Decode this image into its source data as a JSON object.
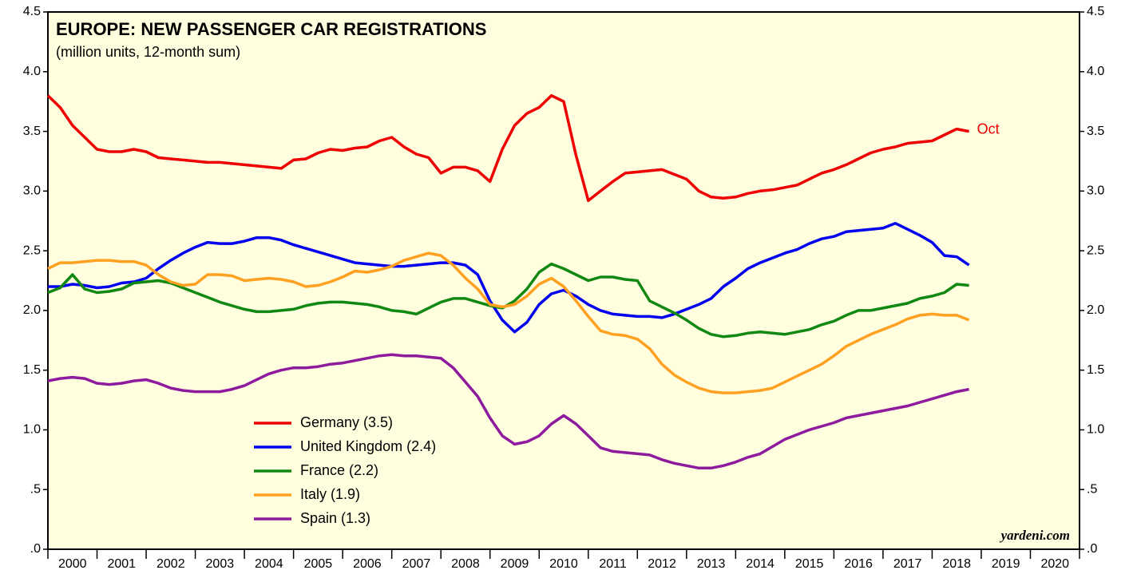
{
  "chart_data": {
    "type": "line",
    "title": "EUROPE: NEW PASSENGER CAR REGISTRATIONS",
    "subtitle": "(million units, 12-month sum)",
    "annotation": "Oct",
    "source": "yardeni.com",
    "grid": false,
    "legend": "lower-left",
    "xlim": [
      2000,
      2021
    ],
    "xticks": [
      2000,
      2001,
      2002,
      2003,
      2004,
      2005,
      2006,
      2007,
      2008,
      2009,
      2010,
      2011,
      2012,
      2013,
      2014,
      2015,
      2016,
      2017,
      2018,
      2019,
      2020
    ],
    "ylim": [
      0,
      4.5
    ],
    "yticks": [
      {
        "value": 0,
        "label": ".0"
      },
      {
        "value": 0.5,
        "label": ".5"
      },
      {
        "value": 1,
        "label": "1.0"
      },
      1.5,
      {
        "value": 2,
        "label": "2.0"
      },
      2.5,
      {
        "value": 3,
        "label": "3.0"
      },
      3.5,
      {
        "value": 4,
        "label": "4.0"
      },
      4.5
    ],
    "x": [
      2000,
      2000.25,
      2000.5,
      2000.75,
      2001,
      2001.25,
      2001.5,
      2001.75,
      2002,
      2002.25,
      2002.5,
      2002.75,
      2003,
      2003.25,
      2003.5,
      2003.75,
      2004,
      2004.25,
      2004.5,
      2004.75,
      2005,
      2005.25,
      2005.5,
      2005.75,
      2006,
      2006.25,
      2006.5,
      2006.75,
      2007,
      2007.25,
      2007.5,
      2007.75,
      2008,
      2008.25,
      2008.5,
      2008.75,
      2009,
      2009.25,
      2009.5,
      2009.75,
      2010,
      2010.25,
      2010.5,
      2010.75,
      2011,
      2011.25,
      2011.5,
      2011.75,
      2012,
      2012.25,
      2012.5,
      2012.75,
      2013,
      2013.25,
      2013.5,
      2013.75,
      2014,
      2014.25,
      2014.5,
      2014.75,
      2015,
      2015.25,
      2015.5,
      2015.75,
      2016,
      2016.25,
      2016.5,
      2016.75,
      2017,
      2017.25,
      2017.5,
      2017.75,
      2018,
      2018.25,
      2018.5,
      2018.75
    ],
    "series": [
      {
        "name": "Germany (3.5)",
        "color": "#ee0000",
        "values": [
          3.8,
          3.7,
          3.55,
          3.45,
          3.35,
          3.33,
          3.33,
          3.35,
          3.33,
          3.28,
          3.27,
          3.26,
          3.25,
          3.24,
          3.24,
          3.23,
          3.22,
          3.21,
          3.2,
          3.19,
          3.26,
          3.27,
          3.32,
          3.35,
          3.34,
          3.36,
          3.37,
          3.42,
          3.45,
          3.37,
          3.31,
          3.28,
          3.15,
          3.2,
          3.2,
          3.17,
          3.08,
          3.35,
          3.55,
          3.65,
          3.7,
          3.8,
          3.75,
          3.3,
          2.92,
          3.0,
          3.08,
          3.15,
          3.16,
          3.17,
          3.18,
          3.14,
          3.1,
          3.0,
          2.95,
          2.94,
          2.95,
          2.98,
          3.0,
          3.01,
          3.03,
          3.05,
          3.1,
          3.15,
          3.18,
          3.22,
          3.27,
          3.32,
          3.35,
          3.37,
          3.4,
          3.41,
          3.42,
          3.47,
          3.52,
          3.5
        ]
      },
      {
        "name": "United Kingdom (2.4)",
        "color": "#0000ee",
        "values": [
          2.2,
          2.2,
          2.22,
          2.21,
          2.19,
          2.2,
          2.23,
          2.24,
          2.27,
          2.35,
          2.42,
          2.48,
          2.53,
          2.57,
          2.56,
          2.56,
          2.58,
          2.61,
          2.61,
          2.59,
          2.55,
          2.52,
          2.49,
          2.46,
          2.43,
          2.4,
          2.39,
          2.38,
          2.37,
          2.37,
          2.38,
          2.39,
          2.4,
          2.4,
          2.38,
          2.3,
          2.08,
          1.92,
          1.82,
          1.9,
          2.05,
          2.14,
          2.17,
          2.12,
          2.05,
          2.0,
          1.97,
          1.96,
          1.95,
          1.95,
          1.94,
          1.97,
          2.01,
          2.05,
          2.1,
          2.2,
          2.27,
          2.35,
          2.4,
          2.44,
          2.48,
          2.51,
          2.56,
          2.6,
          2.62,
          2.66,
          2.67,
          2.68,
          2.69,
          2.73,
          2.68,
          2.63,
          2.57,
          2.46,
          2.45,
          2.38
        ]
      },
      {
        "name": "France (2.2)",
        "color": "#118811",
        "values": [
          2.15,
          2.19,
          2.3,
          2.18,
          2.15,
          2.16,
          2.18,
          2.23,
          2.24,
          2.25,
          2.23,
          2.19,
          2.15,
          2.11,
          2.07,
          2.04,
          2.01,
          1.99,
          1.99,
          2.0,
          2.01,
          2.04,
          2.06,
          2.07,
          2.07,
          2.06,
          2.05,
          2.03,
          2.0,
          1.99,
          1.97,
          2.02,
          2.07,
          2.1,
          2.1,
          2.07,
          2.04,
          2.02,
          2.08,
          2.18,
          2.32,
          2.39,
          2.35,
          2.3,
          2.25,
          2.28,
          2.28,
          2.26,
          2.25,
          2.08,
          2.03,
          1.98,
          1.92,
          1.85,
          1.8,
          1.78,
          1.79,
          1.81,
          1.82,
          1.81,
          1.8,
          1.82,
          1.84,
          1.88,
          1.91,
          1.96,
          2.0,
          2.0,
          2.02,
          2.04,
          2.06,
          2.1,
          2.12,
          2.15,
          2.22,
          2.21
        ]
      },
      {
        "name": "Italy (1.9)",
        "color": "#ffa020",
        "values": [
          2.35,
          2.4,
          2.4,
          2.41,
          2.42,
          2.42,
          2.41,
          2.41,
          2.38,
          2.3,
          2.24,
          2.21,
          2.22,
          2.3,
          2.3,
          2.29,
          2.25,
          2.26,
          2.27,
          2.26,
          2.24,
          2.2,
          2.21,
          2.24,
          2.28,
          2.33,
          2.32,
          2.34,
          2.37,
          2.42,
          2.45,
          2.48,
          2.46,
          2.38,
          2.27,
          2.18,
          2.05,
          2.03,
          2.05,
          2.12,
          2.22,
          2.27,
          2.2,
          2.08,
          1.95,
          1.83,
          1.8,
          1.79,
          1.76,
          1.68,
          1.55,
          1.46,
          1.4,
          1.35,
          1.32,
          1.31,
          1.31,
          1.32,
          1.33,
          1.35,
          1.4,
          1.45,
          1.5,
          1.55,
          1.62,
          1.7,
          1.75,
          1.8,
          1.84,
          1.88,
          1.93,
          1.96,
          1.97,
          1.96,
          1.96,
          1.92
        ]
      },
      {
        "name": "Spain (1.3)",
        "color": "#8e1a9e",
        "values": [
          1.41,
          1.43,
          1.44,
          1.43,
          1.39,
          1.38,
          1.39,
          1.41,
          1.42,
          1.39,
          1.35,
          1.33,
          1.32,
          1.32,
          1.32,
          1.34,
          1.37,
          1.42,
          1.47,
          1.5,
          1.52,
          1.52,
          1.53,
          1.55,
          1.56,
          1.58,
          1.6,
          1.62,
          1.63,
          1.62,
          1.62,
          1.61,
          1.6,
          1.52,
          1.4,
          1.28,
          1.1,
          0.95,
          0.88,
          0.9,
          0.95,
          1.05,
          1.12,
          1.05,
          0.95,
          0.85,
          0.82,
          0.81,
          0.8,
          0.79,
          0.75,
          0.72,
          0.7,
          0.68,
          0.68,
          0.7,
          0.73,
          0.77,
          0.8,
          0.86,
          0.92,
          0.96,
          1.0,
          1.03,
          1.06,
          1.1,
          1.12,
          1.14,
          1.16,
          1.18,
          1.2,
          1.23,
          1.26,
          1.29,
          1.32,
          1.34
        ]
      }
    ]
  }
}
